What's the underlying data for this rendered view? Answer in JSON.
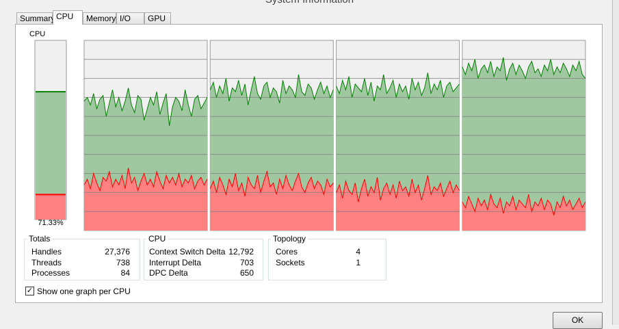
{
  "window": {
    "title": "System Information"
  },
  "tabs": [
    "Summary",
    "CPU",
    "Memory",
    "I/O",
    "GPU"
  ],
  "active_tab": 1,
  "cpu_meter": {
    "label": "CPU",
    "value": 71.33,
    "value_label": "71.33%",
    "kernel": 14
  },
  "graphs": {
    "ylim": [
      0,
      100
    ],
    "yticks": [
      10,
      20,
      30,
      40,
      50,
      60,
      70,
      80,
      90
    ],
    "total_color": "#008000",
    "total_fill": "#a0c8a0",
    "kernel_color": "#ff0000",
    "kernel_fill": "#ff8080",
    "cpus": [
      {
        "total": [
          68,
          70,
          66,
          72,
          64,
          69,
          71,
          60,
          67,
          74,
          65,
          70,
          63,
          68,
          75,
          66,
          62,
          71,
          69,
          58,
          64,
          70,
          66,
          73,
          61,
          67,
          72,
          55,
          65,
          70,
          68,
          63,
          74,
          66,
          60,
          69,
          71,
          64,
          67,
          70
        ],
        "kernel": [
          24,
          27,
          22,
          30,
          25,
          21,
          28,
          26,
          31,
          23,
          27,
          24,
          29,
          22,
          33,
          25,
          28,
          21,
          26,
          30,
          24,
          27,
          23,
          31,
          26,
          22,
          29,
          25,
          28,
          24,
          30,
          23,
          27,
          25,
          29,
          22,
          26,
          28,
          24,
          27
        ]
      },
      {
        "total": [
          74,
          78,
          70,
          76,
          72,
          80,
          68,
          75,
          73,
          79,
          71,
          77,
          66,
          74,
          81,
          72,
          69,
          76,
          78,
          70,
          75,
          73,
          67,
          79,
          72,
          76,
          74,
          70,
          82,
          73,
          71,
          77,
          75,
          69,
          74,
          78,
          72,
          76,
          70,
          74
        ],
        "kernel": [
          22,
          26,
          20,
          28,
          24,
          19,
          27,
          23,
          30,
          21,
          25,
          18,
          28,
          24,
          22,
          29,
          20,
          26,
          31,
          23,
          25,
          19,
          27,
          22,
          29,
          24,
          21,
          26,
          30,
          23,
          20,
          25,
          28,
          22,
          26,
          24,
          19,
          27,
          23,
          25
        ]
      },
      {
        "total": [
          76,
          72,
          79,
          74,
          81,
          70,
          77,
          75,
          73,
          80,
          71,
          78,
          68,
          76,
          74,
          82,
          72,
          75,
          79,
          70,
          77,
          73,
          76,
          69,
          80,
          74,
          78,
          71,
          75,
          83,
          72,
          77,
          74,
          79,
          70,
          76,
          78,
          73,
          75,
          77
        ],
        "kernel": [
          20,
          24,
          17,
          26,
          21,
          19,
          25,
          15,
          22,
          27,
          18,
          23,
          20,
          28,
          16,
          22,
          25,
          19,
          24,
          17,
          26,
          21,
          23,
          18,
          27,
          20,
          24,
          16,
          22,
          29,
          19,
          23,
          21,
          25,
          18,
          22,
          26,
          20,
          24,
          21
        ]
      },
      {
        "total": [
          86,
          82,
          88,
          84,
          90,
          80,
          85,
          87,
          83,
          89,
          81,
          86,
          84,
          91,
          79,
          85,
          88,
          82,
          87,
          84,
          80,
          86,
          89,
          83,
          85,
          81,
          87,
          84,
          90,
          82,
          86,
          83,
          88,
          85,
          81,
          87,
          84,
          89,
          82,
          80
        ],
        "kernel": [
          15,
          12,
          18,
          14,
          10,
          17,
          13,
          16,
          11,
          19,
          14,
          12,
          17,
          9,
          15,
          13,
          18,
          11,
          16,
          14,
          12,
          19,
          10,
          15,
          13,
          17,
          11,
          16,
          14,
          8,
          15,
          12,
          18,
          13,
          16,
          11,
          14,
          17,
          12,
          15
        ]
      }
    ]
  },
  "totals": {
    "title": "Totals",
    "rows": [
      [
        "Handles",
        "27,376"
      ],
      [
        "Threads",
        "738"
      ],
      [
        "Processes",
        "84"
      ]
    ]
  },
  "cpu_stats": {
    "title": "CPU",
    "rows": [
      [
        "Context Switch Delta",
        "12,792"
      ],
      [
        "Interrupt Delta",
        "703"
      ],
      [
        "DPC Delta",
        "650"
      ]
    ]
  },
  "topology": {
    "title": "Topology",
    "rows": [
      [
        "Cores",
        "4"
      ],
      [
        "Sockets",
        "1"
      ]
    ]
  },
  "checkbox": {
    "label": "Show one graph per CPU",
    "checked": true
  },
  "ok_button": "OK"
}
